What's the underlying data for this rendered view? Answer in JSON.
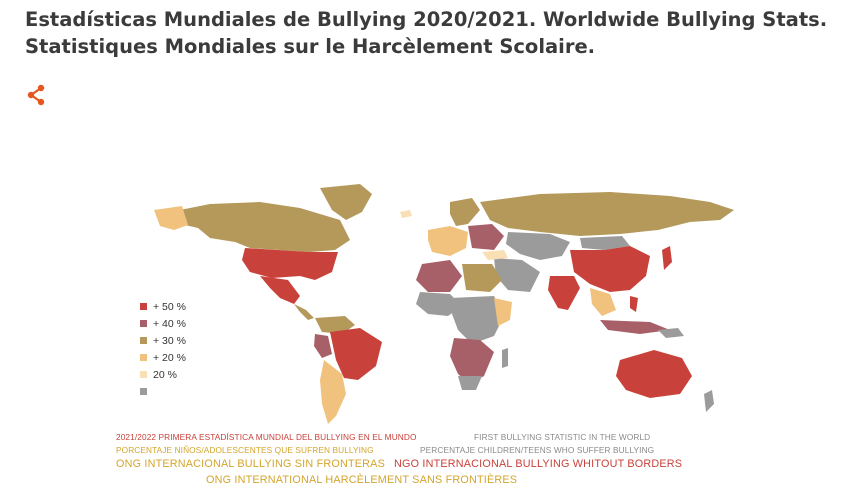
{
  "title": "Estadísticas Mundiales de Bullying 2020/2021. Worldwide Bullying Stats. Statistiques Mondiales sur le Harcèlement Scolaire.",
  "share": {
    "icon": "share-icon",
    "color": "#e8561f"
  },
  "legend": [
    {
      "label": "+ 50 %",
      "color": "#c8413a"
    },
    {
      "label": "+ 40 %",
      "color": "#a86068"
    },
    {
      "label": "+ 30 %",
      "color": "#b5995b"
    },
    {
      "label": "+ 20 %",
      "color": "#f1c27d"
    },
    {
      "label": "20 %",
      "color": "#f8dfb4"
    },
    {
      "label": "",
      "color": "#9b9b9b"
    }
  ],
  "captions": {
    "line1_left": "2021/2022 PRIMERA ESTADÍSTICA MUNDIAL DEL BULLYING EN EL MUNDO",
    "line1_right": "FIRST BULLYING STATISTIC IN THE WORLD",
    "line2_left": "PORCENTAJE NIÑOS/ADOLESCENTES QUE SUFREN BULLYING",
    "line2_right": "PERCENTAJE CHILDREN/TEENS WHO SUFFER BULLYING",
    "line3_left": "ONG INTERNACIONAL BULLYING SIN FRONTERAS",
    "line3_right": "NGO INTERNACIONAL BULLYING WHITOUT BORDERS",
    "line4": "ONG INTERNATIONAL HARCÈLEMENT SANS FRONTIÈRES"
  },
  "caption_colors": {
    "red": "#c8413a",
    "gray": "#8a8a8a",
    "gold": "#d4a52c"
  }
}
